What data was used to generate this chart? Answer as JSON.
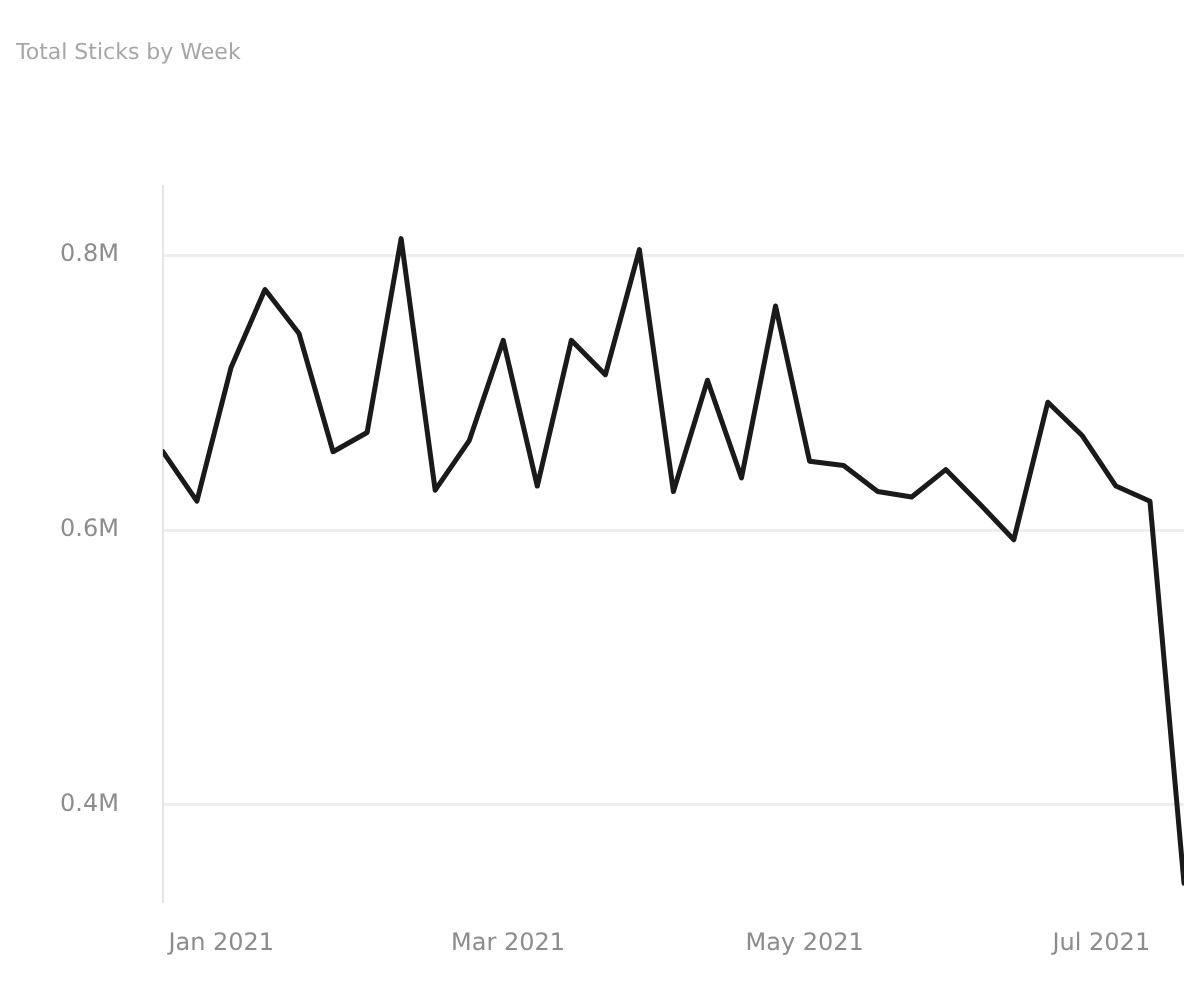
{
  "chart_data": {
    "type": "line",
    "title": "Total Sticks by Week",
    "x": [
      "2020-12-20",
      "2020-12-27",
      "2021-01-03",
      "2021-01-10",
      "2021-01-17",
      "2021-01-24",
      "2021-01-31",
      "2021-02-07",
      "2021-02-14",
      "2021-02-21",
      "2021-02-28",
      "2021-03-07",
      "2021-03-14",
      "2021-03-21",
      "2021-03-28",
      "2021-04-04",
      "2021-04-11",
      "2021-04-18",
      "2021-04-25",
      "2021-05-02",
      "2021-05-09",
      "2021-05-16",
      "2021-05-23",
      "2021-05-30",
      "2021-06-06",
      "2021-06-13",
      "2021-06-20",
      "2021-06-27",
      "2021-07-04",
      "2021-07-11",
      "2021-07-18"
    ],
    "series": [
      {
        "color": "#1a1a1a",
        "values": [
          0.657,
          0.621,
          0.718,
          0.775,
          0.743,
          0.657,
          0.671,
          0.812,
          0.629,
          0.665,
          0.738,
          0.632,
          0.738,
          0.713,
          0.804,
          0.628,
          0.709,
          0.638,
          0.763,
          0.65,
          0.647,
          0.628,
          0.624,
          0.644,
          0.619,
          0.593,
          0.693,
          0.669,
          0.632,
          0.621,
          0.343
        ]
      }
    ],
    "xlim": [
      "2020-12-20",
      "2021-07-18"
    ],
    "xticks": [
      {
        "value": "2021-01-01",
        "label": "Jan 2021"
      },
      {
        "value": "2021-03-01",
        "label": "Mar 2021"
      },
      {
        "value": "2021-05-01",
        "label": "May 2021"
      },
      {
        "value": "2021-07-01",
        "label": "Jul 2021"
      }
    ],
    "ylim": [
      0.33,
      0.85
    ],
    "yticks": [
      {
        "value": 0.4,
        "label": "0.4M"
      },
      {
        "value": 0.6,
        "label": "0.6M"
      },
      {
        "value": 0.8,
        "label": "0.8M"
      }
    ],
    "grid": "y",
    "legend": false,
    "marker": "none",
    "line_style": "solid"
  }
}
